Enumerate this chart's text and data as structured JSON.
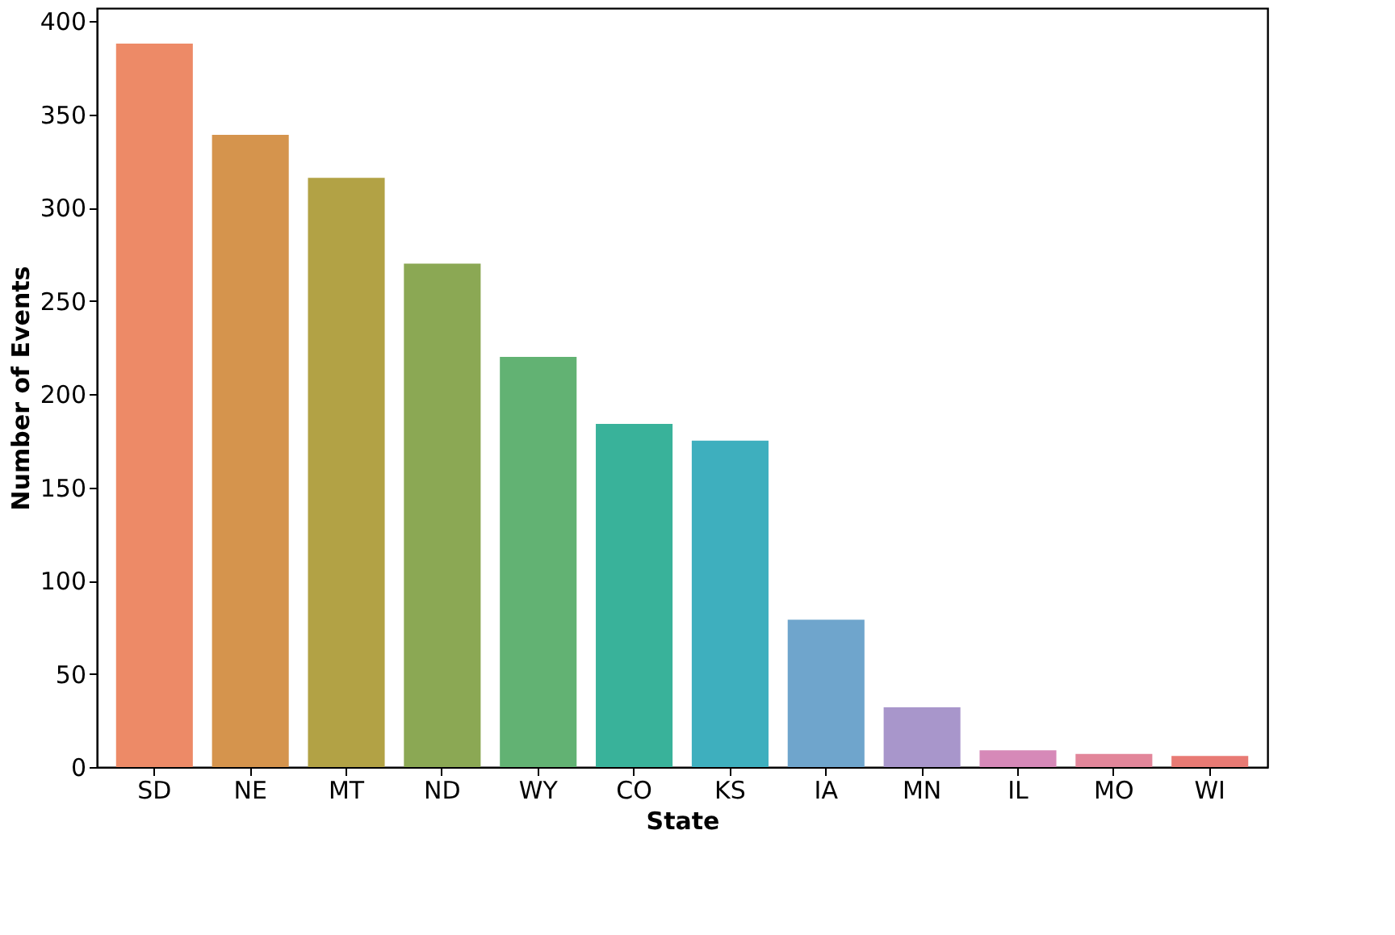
{
  "chart_data": {
    "type": "bar",
    "xlabel": "State",
    "ylabel": "Number of Events",
    "categories": [
      "SD",
      "NE",
      "MT",
      "ND",
      "WY",
      "CO",
      "KS",
      "IA",
      "MN",
      "IL",
      "MO",
      "WI"
    ],
    "values": [
      388,
      339,
      316,
      270,
      220,
      184,
      175,
      79,
      32,
      9,
      7,
      6
    ],
    "colors": [
      "#ed8a67",
      "#d5944d",
      "#b2a245",
      "#8ba854",
      "#62b273",
      "#39b29a",
      "#3eafbe",
      "#6fa5cc",
      "#a896cb",
      "#d689b8",
      "#e2869a",
      "#e87a74"
    ],
    "ylim": [
      0,
      407
    ],
    "yticks": [
      0,
      50,
      100,
      150,
      200,
      250,
      300,
      350,
      400
    ],
    "grid": false
  }
}
